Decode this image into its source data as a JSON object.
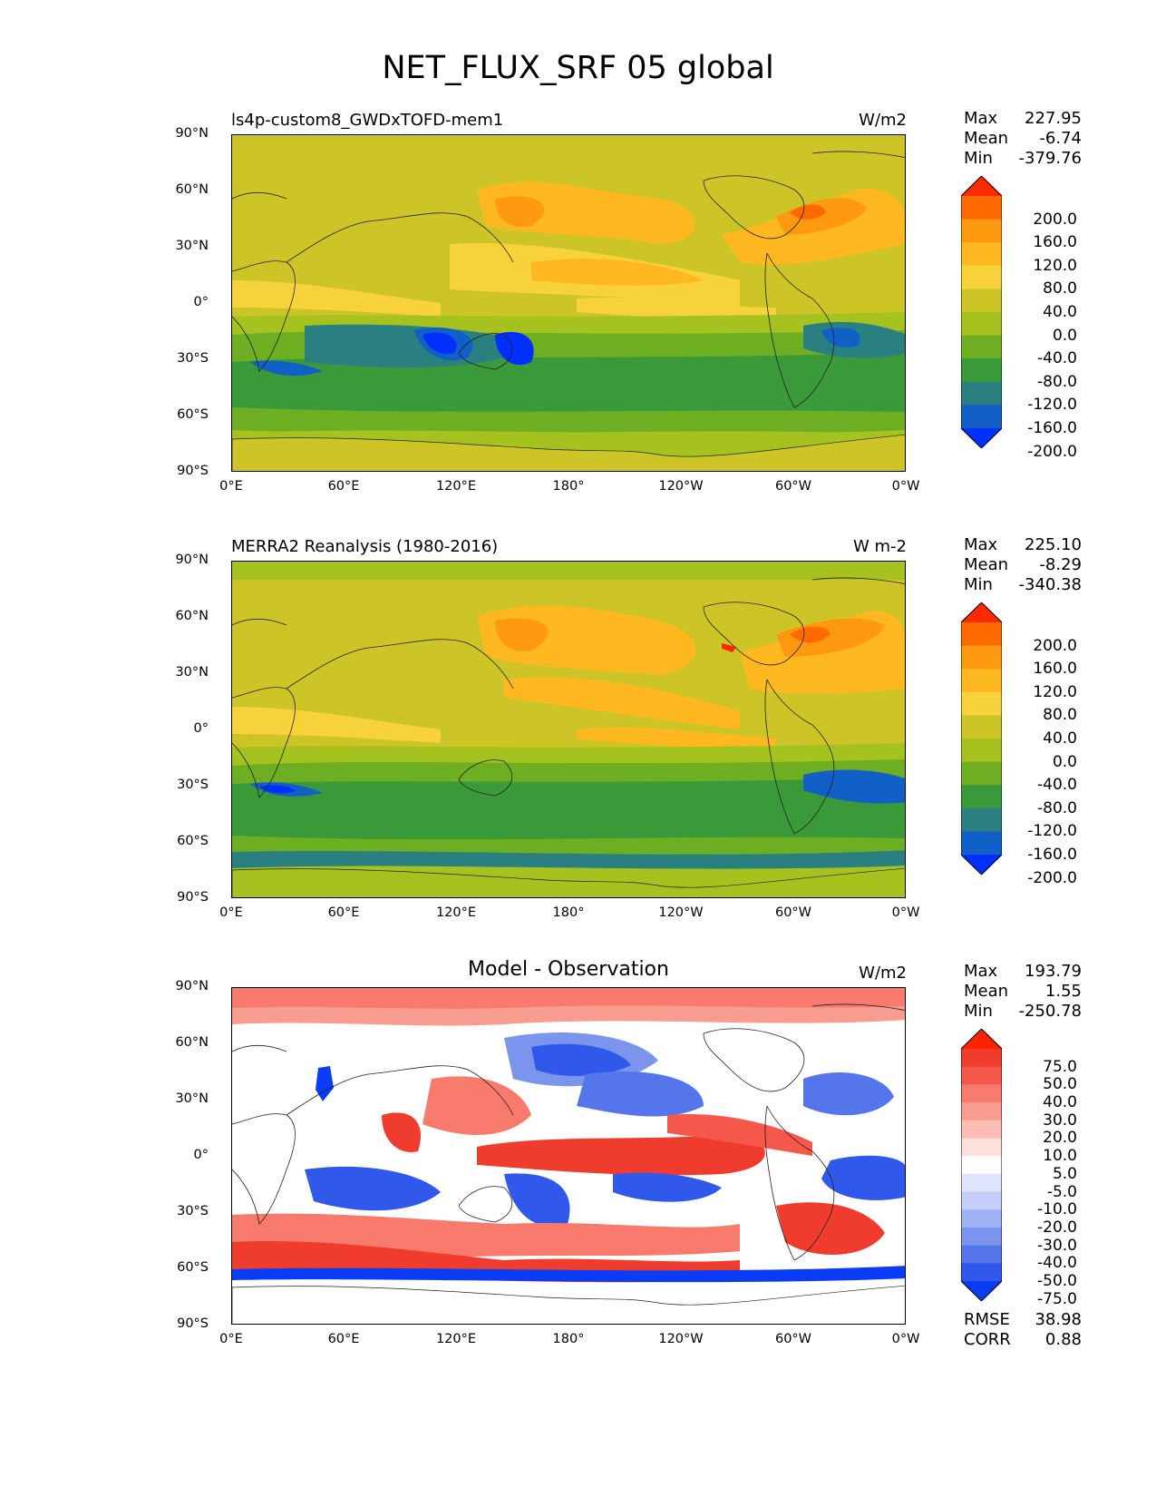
{
  "title": "NET_FLUX_SRF 05 global",
  "lat_ticks": [
    "90°N",
    "60°N",
    "30°N",
    "0°",
    "30°S",
    "60°S",
    "90°S"
  ],
  "lon_ticks": [
    "0°E",
    "60°E",
    "120°E",
    "180°",
    "120°W",
    "60°W",
    "0°W"
  ],
  "panels": [
    {
      "title": "ls4p-custom8_GWDxTOFD-mem1",
      "units": "W/m2",
      "stats": {
        "max_label": "Max",
        "max": "227.95",
        "mean_label": "Mean",
        "mean": "-6.74",
        "min_label": "Min",
        "min": "-379.76"
      },
      "colorbar": {
        "labels": [
          "200.0",
          "160.0",
          "120.0",
          "80.0",
          "40.0",
          "0.0",
          "-40.0",
          "-80.0",
          "-120.0",
          "-160.0",
          "-200.0"
        ],
        "colors": [
          "#ff2a00",
          "#ff6a00",
          "#ff9a10",
          "#ffb820",
          "#f7d23a",
          "#cdc528",
          "#a5c21f",
          "#6dae22",
          "#3a9a3a",
          "#2a8080",
          "#1060c8",
          "#0030ff"
        ]
      }
    },
    {
      "title": "MERRA2 Reanalysis (1980-2016)",
      "units": "W m-2",
      "stats": {
        "max_label": "Max",
        "max": "225.10",
        "mean_label": "Mean",
        "mean": "-8.29",
        "min_label": "Min",
        "min": "-340.38"
      },
      "colorbar": {
        "labels": [
          "200.0",
          "160.0",
          "120.0",
          "80.0",
          "40.0",
          "0.0",
          "-40.0",
          "-80.0",
          "-120.0",
          "-160.0",
          "-200.0"
        ],
        "colors": [
          "#ff2a00",
          "#ff6a00",
          "#ff9a10",
          "#ffb820",
          "#f7d23a",
          "#cdc528",
          "#a5c21f",
          "#6dae22",
          "#3a9a3a",
          "#2a8080",
          "#1060c8",
          "#0030ff"
        ]
      }
    },
    {
      "title": "Model - Observation",
      "units": "W/m2",
      "stats": {
        "max_label": "Max",
        "max": "193.79",
        "mean_label": "Mean",
        "mean": "1.55",
        "min_label": "Min",
        "min": "-250.78"
      },
      "colorbar": {
        "labels": [
          "75.0",
          "50.0",
          "40.0",
          "30.0",
          "20.0",
          "10.0",
          "5.0",
          "-5.0",
          "-10.0",
          "-20.0",
          "-30.0",
          "-40.0",
          "-50.0",
          "-75.0"
        ],
        "colors": [
          "#ff2200",
          "#f03c2c",
          "#f5584a",
          "#f77a6c",
          "#f99c90",
          "#fbbeb4",
          "#fde0da",
          "#ffffff",
          "#dfe6fb",
          "#c3cff8",
          "#9fb2f3",
          "#7b94ee",
          "#5576ea",
          "#3058ea",
          "#0a3cf5"
        ]
      },
      "extra": {
        "rmse_label": "RMSE",
        "rmse": "38.98",
        "corr_label": "CORR",
        "corr": "0.88"
      }
    }
  ]
}
